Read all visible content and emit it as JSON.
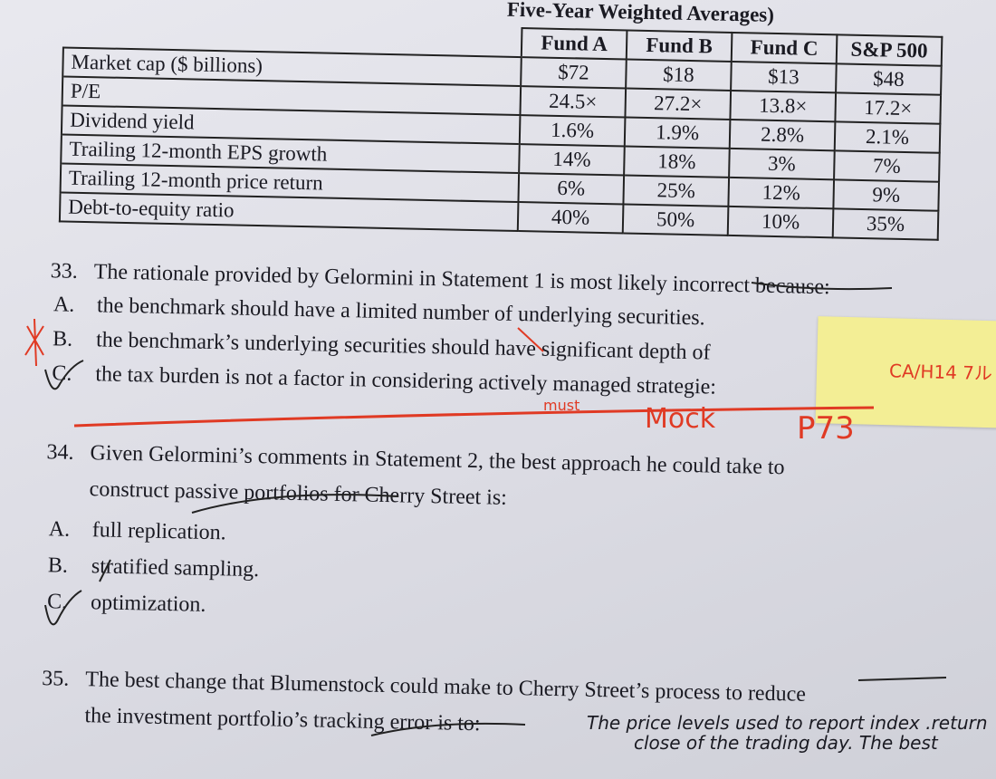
{
  "table": {
    "caption": "Five-Year Weighted Averages)",
    "columns": [
      "Fund A",
      "Fund B",
      "Fund C",
      "S&P 500"
    ],
    "rows": [
      {
        "label": "Market cap ($ billions)",
        "values": [
          "$72",
          "$18",
          "$13",
          "$48"
        ]
      },
      {
        "label": "P/E",
        "values": [
          "24.5×",
          "27.2×",
          "13.8×",
          "17.2×"
        ]
      },
      {
        "label": "Dividend yield",
        "values": [
          "1.6%",
          "1.9%",
          "2.8%",
          "2.1%"
        ]
      },
      {
        "label": "Trailing 12-month EPS growth",
        "values": [
          "14%",
          "18%",
          "3%",
          "7%"
        ]
      },
      {
        "label": "Trailing 12-month price return",
        "values": [
          "6%",
          "25%",
          "12%",
          "9%"
        ]
      },
      {
        "label": "Debt-to-equity ratio",
        "values": [
          "40%",
          "50%",
          "10%",
          "35%"
        ]
      }
    ]
  },
  "questions": [
    {
      "number": "33.",
      "text": "The rationale provided by Gelormini in Statement 1 is most likely incorrect because:",
      "options": [
        {
          "letter": "A.",
          "text": "the benchmark should have a limited number of underlying securities."
        },
        {
          "letter": "B.",
          "text": "the benchmark’s underlying securities should have significant depth of"
        },
        {
          "letter": "C.",
          "text": "the tax burden is not a factor in considering actively managed strategie:"
        }
      ]
    },
    {
      "number": "34.",
      "text": "Given Gelormini’s comments in Statement 2, the best approach he could take to",
      "text2": "construct passive portfolios for Cherry Street is:",
      "options": [
        {
          "letter": "A.",
          "text": "full replication."
        },
        {
          "letter": "B.",
          "text": "stratified sampling."
        },
        {
          "letter": "C.",
          "text": "optimization."
        }
      ]
    },
    {
      "number": "35.",
      "text": "The best change that Blumenstock could make to Cherry Street’s process to reduce",
      "text2": "the investment portfolio’s tracking error is to:"
    }
  ],
  "annotations": {
    "must": "must",
    "mock": "Mock",
    "page": "P73",
    "sticky_note": "CA/H14 7ル",
    "handwriting_line1": "The price levels used to report index .return",
    "handwriting_line2": "close of the trading day. The best"
  },
  "colors": {
    "red_pen": "#e03a24",
    "sticky": "#f3ee95",
    "ink": "#1a1a22"
  }
}
